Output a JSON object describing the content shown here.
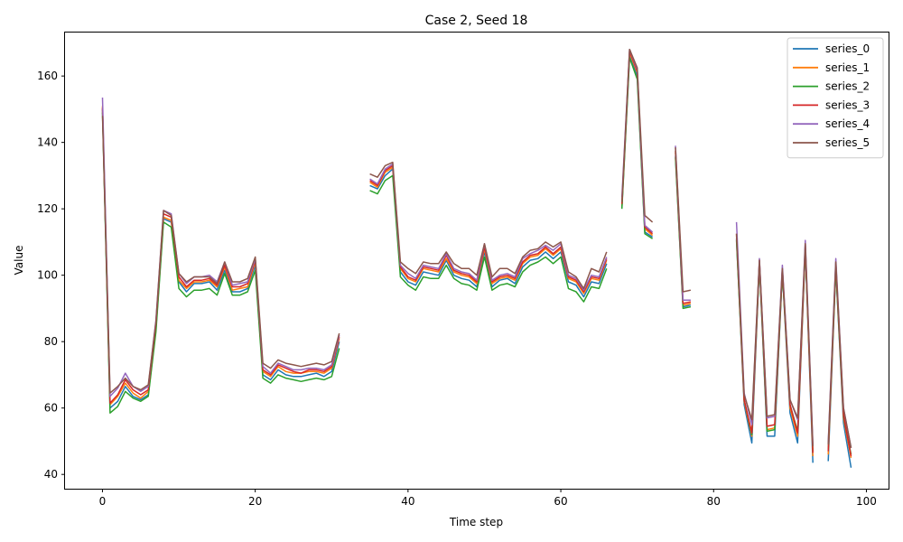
{
  "chart_data": {
    "type": "line",
    "title": "Case 2, Seed 18",
    "xlabel": "Time step",
    "ylabel": "Value",
    "xlim": [
      -4.9,
      102.9
    ],
    "ylim": [
      35.7,
      173.1
    ],
    "xticks": [
      0,
      20,
      40,
      60,
      80,
      100
    ],
    "yticks": [
      40,
      60,
      80,
      100,
      120,
      140,
      160
    ],
    "grid": false,
    "legend_position": "top-right",
    "series": [
      {
        "name": "series_0",
        "color": "#1f77b4",
        "values": [
          150.0,
          60.0,
          62.0,
          66.5,
          63.5,
          62.5,
          64.0,
          84.0,
          117.0,
          116.0,
          98.0,
          95.0,
          97.5,
          97.5,
          98.0,
          95.5,
          101.5,
          95.0,
          95.0,
          96.0,
          103.0,
          70.0,
          68.5,
          71.5,
          70.0,
          69.5,
          69.5,
          70.0,
          70.5,
          69.5,
          71.0,
          80.0,
          null,
          null,
          null,
          127.0,
          126.0,
          130.0,
          132.0,
          101.0,
          98.0,
          97.0,
          101.0,
          100.5,
          100.0,
          104.5,
          100.0,
          99.0,
          98.5,
          96.5,
          107.0,
          96.5,
          98.5,
          99.0,
          97.5,
          102.5,
          104.5,
          105.0,
          107.0,
          105.0,
          107.0,
          98.0,
          97.0,
          93.5,
          98.0,
          97.5,
          103.5,
          null,
          120.5,
          166.0,
          160.0,
          113.0,
          111.5,
          null,
          null,
          136.0,
          90.5,
          91.0,
          null,
          null,
          null,
          null,
          null,
          111.0,
          61.0,
          49.5,
          103.5,
          51.5,
          51.5,
          101.0,
          58.5,
          49.5,
          108.0,
          43.5,
          null,
          44.0,
          102.0,
          55.5,
          42.0
        ]
      },
      {
        "name": "series_1",
        "color": "#ff7f0e",
        "values": [
          151.0,
          61.0,
          63.5,
          67.5,
          64.5,
          63.0,
          65.0,
          85.0,
          117.5,
          116.5,
          98.5,
          96.0,
          98.0,
          98.0,
          98.5,
          96.5,
          102.5,
          95.5,
          96.0,
          96.5,
          104.0,
          71.0,
          69.5,
          72.5,
          71.0,
          70.5,
          70.5,
          71.0,
          71.0,
          70.5,
          72.0,
          81.0,
          null,
          null,
          null,
          128.0,
          126.5,
          131.0,
          132.5,
          102.0,
          99.0,
          98.0,
          102.0,
          101.5,
          101.0,
          105.0,
          101.0,
          100.0,
          99.5,
          97.5,
          108.0,
          97.5,
          99.0,
          99.5,
          98.5,
          103.5,
          105.5,
          106.0,
          108.0,
          106.0,
          108.0,
          99.0,
          98.0,
          94.5,
          99.0,
          98.5,
          104.5,
          null,
          121.0,
          167.0,
          161.0,
          114.0,
          112.0,
          null,
          null,
          137.0,
          91.0,
          91.5,
          null,
          null,
          null,
          null,
          null,
          112.0,
          62.0,
          51.5,
          104.0,
          53.5,
          54.0,
          101.5,
          60.0,
          51.5,
          108.5,
          45.5,
          null,
          46.0,
          103.0,
          57.0,
          45.0
        ]
      },
      {
        "name": "series_2",
        "color": "#2ca02c",
        "values": [
          149.0,
          58.5,
          60.5,
          65.0,
          63.0,
          62.0,
          63.5,
          83.0,
          116.0,
          114.5,
          96.0,
          93.5,
          95.5,
          95.5,
          96.0,
          94.0,
          100.5,
          94.0,
          94.0,
          95.0,
          101.5,
          69.0,
          67.5,
          70.0,
          69.0,
          68.5,
          68.0,
          68.5,
          69.0,
          68.5,
          69.5,
          78.0,
          null,
          null,
          null,
          125.5,
          124.5,
          128.5,
          130.0,
          99.5,
          97.0,
          95.5,
          99.5,
          99.0,
          99.0,
          103.0,
          99.0,
          97.5,
          97.0,
          95.5,
          105.5,
          95.5,
          97.0,
          97.5,
          96.5,
          101.0,
          103.0,
          104.0,
          105.5,
          103.5,
          105.5,
          96.0,
          95.0,
          92.0,
          96.5,
          96.0,
          102.0,
          null,
          120.0,
          165.5,
          159.0,
          112.5,
          111.0,
          null,
          null,
          135.5,
          90.0,
          90.5,
          null,
          null,
          null,
          null,
          null,
          110.5,
          62.5,
          52.0,
          103.5,
          53.0,
          53.5,
          101.0,
          61.0,
          53.0,
          108.0,
          47.0,
          null,
          47.0,
          102.0,
          57.5,
          46.0
        ]
      },
      {
        "name": "series_3",
        "color": "#d62728",
        "values": [
          150.5,
          61.5,
          64.0,
          68.5,
          65.5,
          64.0,
          65.5,
          85.5,
          118.5,
          117.5,
          99.5,
          96.5,
          98.5,
          98.5,
          99.0,
          97.0,
          103.0,
          96.5,
          96.5,
          97.5,
          104.5,
          71.5,
          70.0,
          73.0,
          72.0,
          71.0,
          70.5,
          71.5,
          71.5,
          71.0,
          72.5,
          81.5,
          null,
          null,
          null,
          128.5,
          127.0,
          131.5,
          133.0,
          102.5,
          99.5,
          98.5,
          102.5,
          102.0,
          101.5,
          106.0,
          101.5,
          100.5,
          100.0,
          98.0,
          108.5,
          98.0,
          99.5,
          100.0,
          99.0,
          104.0,
          106.0,
          106.5,
          108.5,
          106.5,
          108.5,
          99.5,
          98.5,
          95.0,
          99.5,
          99.0,
          105.0,
          null,
          121.5,
          167.5,
          161.5,
          114.5,
          112.5,
          null,
          null,
          137.5,
          91.5,
          92.0,
          null,
          null,
          null,
          null,
          null,
          112.5,
          62.5,
          52.5,
          104.5,
          54.5,
          55.0,
          102.0,
          61.0,
          52.5,
          109.0,
          46.5,
          null,
          47.0,
          103.5,
          58.0,
          45.5
        ]
      },
      {
        "name": "series_4",
        "color": "#9467bd",
        "values": [
          153.5,
          63.5,
          66.0,
          70.5,
          66.5,
          65.0,
          66.5,
          86.5,
          119.5,
          118.5,
          100.5,
          97.5,
          99.5,
          99.5,
          100.0,
          98.0,
          104.0,
          97.0,
          97.5,
          98.0,
          105.0,
          72.5,
          70.5,
          73.5,
          72.5,
          71.5,
          71.5,
          72.0,
          72.0,
          71.5,
          73.0,
          82.0,
          null,
          null,
          null,
          129.0,
          127.5,
          132.0,
          133.5,
          103.0,
          100.5,
          99.0,
          103.0,
          102.5,
          102.0,
          106.5,
          102.0,
          101.0,
          100.5,
          98.5,
          109.5,
          98.5,
          100.0,
          100.5,
          99.5,
          105.0,
          106.5,
          107.5,
          109.0,
          107.5,
          109.5,
          100.0,
          99.0,
          95.5,
          100.0,
          99.5,
          105.5,
          null,
          123.5,
          168.0,
          162.0,
          115.0,
          113.0,
          null,
          null,
          139.0,
          92.5,
          92.5,
          null,
          null,
          null,
          null,
          null,
          116.0,
          64.5,
          55.0,
          105.0,
          57.0,
          57.5,
          103.0,
          62.5,
          56.5,
          110.5,
          49.0,
          null,
          49.5,
          105.0,
          60.0,
          48.0
        ]
      },
      {
        "name": "series_5",
        "color": "#8c564b",
        "values": [
          148.0,
          64.5,
          66.5,
          69.0,
          66.5,
          65.5,
          67.0,
          86.0,
          119.5,
          118.0,
          100.5,
          98.0,
          99.5,
          99.5,
          99.5,
          97.5,
          104.0,
          98.0,
          98.0,
          99.0,
          105.5,
          73.5,
          72.0,
          74.5,
          73.5,
          73.0,
          72.5,
          73.0,
          73.5,
          73.0,
          74.0,
          82.5,
          null,
          null,
          null,
          130.5,
          129.5,
          133.0,
          134.0,
          104.0,
          102.0,
          100.5,
          104.0,
          103.5,
          103.5,
          107.0,
          103.5,
          102.0,
          102.0,
          100.0,
          109.5,
          99.5,
          102.0,
          102.0,
          100.5,
          105.5,
          107.5,
          108.0,
          110.0,
          108.5,
          110.0,
          101.0,
          99.5,
          96.0,
          102.0,
          101.0,
          107.0,
          null,
          122.0,
          168.0,
          162.5,
          118.0,
          116.0,
          null,
          null,
          138.5,
          95.0,
          95.5,
          null,
          null,
          null,
          null,
          null,
          112.5,
          64.0,
          56.5,
          104.5,
          57.5,
          58.0,
          102.0,
          62.5,
          57.0,
          109.5,
          48.5,
          null,
          49.0,
          104.0,
          60.0,
          48.0
        ]
      }
    ]
  }
}
